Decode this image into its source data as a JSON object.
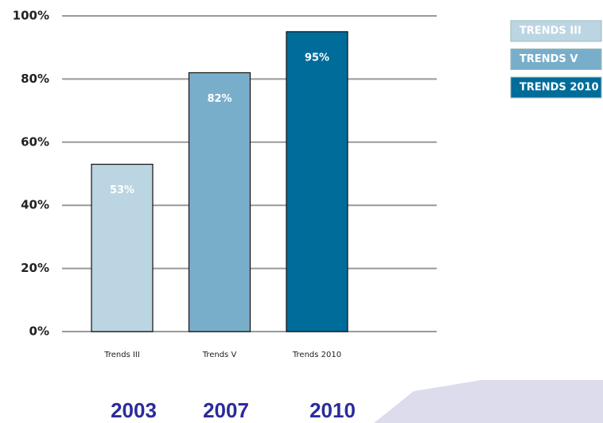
{
  "chart_data": {
    "type": "bar",
    "categories": [
      "Trends III",
      "Trends V",
      "Trends 2010"
    ],
    "values": [
      53,
      82,
      95
    ],
    "value_labels": [
      "53%",
      "82%",
      "95%"
    ],
    "colors": [
      "#bcd5e3",
      "#79aecb",
      "#006c9a"
    ],
    "legend": [
      "TRENDS III",
      "TRENDS V",
      "TRENDS 2010"
    ],
    "ylim": [
      0,
      100
    ],
    "yticks": [
      {
        "value": 0,
        "label": "0%"
      },
      {
        "value": 20,
        "label": "20%"
      },
      {
        "value": 40,
        "label": "40%"
      },
      {
        "value": 60,
        "label": "60%"
      },
      {
        "value": 80,
        "label": "80%"
      },
      {
        "value": 100,
        "label": "100%"
      }
    ],
    "grid": true,
    "annotations": [
      "2003",
      "2007",
      "2010"
    ]
  }
}
